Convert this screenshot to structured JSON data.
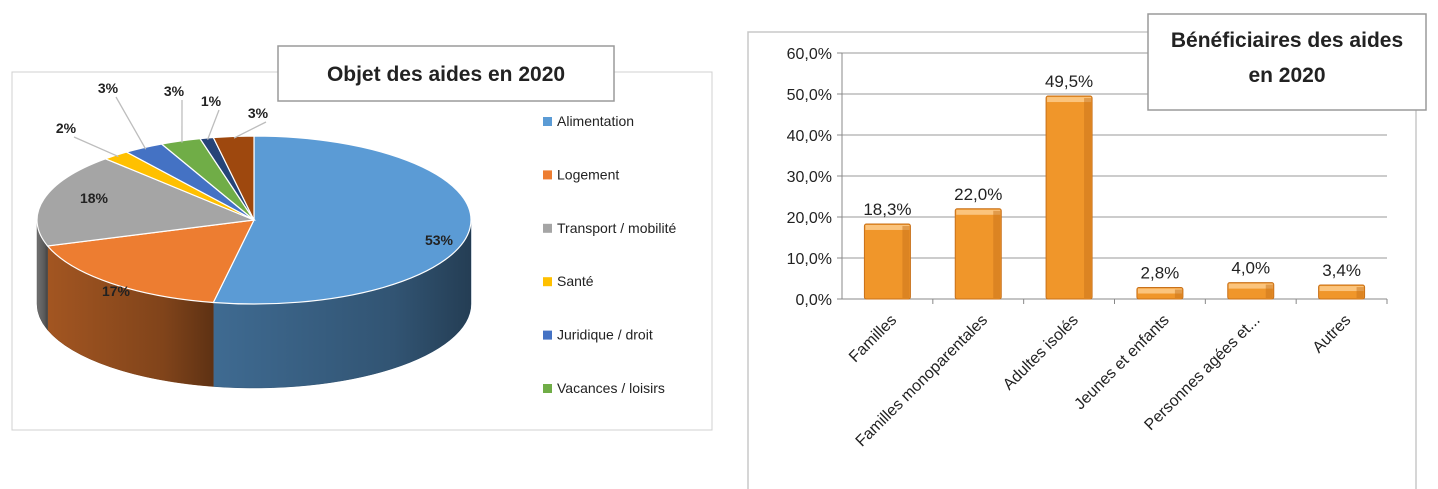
{
  "chart_data": [
    {
      "type": "pie",
      "title": "Objet des aides en 2020",
      "categories": [
        "Alimentation",
        "Logement",
        "Transport / mobilité",
        "Santé",
        "Juridique / droit",
        "Vacances / loisirs",
        "",
        ""
      ],
      "values": [
        53,
        17,
        18,
        2,
        3,
        3,
        1,
        3
      ],
      "labels": [
        "53%",
        "17%",
        "18%",
        "2%",
        "3%",
        "3%",
        "1%",
        "3%"
      ],
      "legend": [
        "Alimentation",
        "Logement",
        "Transport / mobilité",
        "Santé",
        "Juridique / droit",
        "Vacances / loisirs"
      ],
      "legend_position": "right",
      "colors": [
        "#5b9bd5",
        "#ed7d31",
        "#a5a5a5",
        "#ffc000",
        "#4472c4",
        "#70ad47",
        "#264478",
        "#9e480e"
      ]
    },
    {
      "type": "bar",
      "title": "Bénéficiaires des aides en 2020",
      "title_lines": [
        "Bénéficiaires des aides",
        "en 2020"
      ],
      "categories": [
        "Familles",
        "Familles monoparentales",
        "Adultes isolés",
        "Jeunes et enfants",
        "Personnes agées et...",
        "Autres"
      ],
      "values": [
        18.3,
        22.0,
        49.5,
        2.8,
        4.0,
        3.4
      ],
      "value_labels": [
        "18,3%",
        "22,0%",
        "49,5%",
        "2,8%",
        "4,0%",
        "3,4%"
      ],
      "yticks": [
        "0,0%",
        "10,0%",
        "20,0%",
        "30,0%",
        "40,0%",
        "50,0%",
        "60,0%"
      ],
      "ylim": [
        0,
        60
      ],
      "grid": true,
      "colors": {
        "bar": "#f0962a",
        "bar_dark": "#c8711a",
        "bar_light": "#fbc47d"
      }
    }
  ]
}
